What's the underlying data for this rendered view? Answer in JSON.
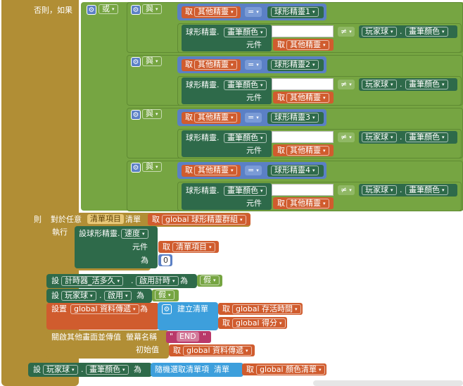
{
  "labels": {
    "else_if": "否則，如果",
    "then": "則",
    "do": "執行",
    "set": "設",
    "set_long": "設置",
    "to": "為",
    "element": "元件",
    "initial": "初始值",
    "ticks": "清單",
    "for_each": "對於任意",
    "list_word": "清單",
    "create_list": "建立清單",
    "random_item": "隨機選取清單項",
    "open_screen": "關啟其他畫面並傳值",
    "screen_name": "螢幕名稱",
    "set_ball": "設球形精靈",
    "component": "元件"
  },
  "logic": {
    "or": "或",
    "and": "與",
    "eq": "=",
    "neq": "≠",
    "dropdown_arrow": "▾"
  },
  "get": {
    "get": "取",
    "other_sprite": "其他精靈",
    "list_item": "清單項目",
    "global_sprites": "global 球形精靈群組",
    "global_time": "global 存活時間",
    "global_score": "global 得分",
    "global_pass": "global 資料傳遞",
    "global_colors": "global 顏色清單"
  },
  "sprites": [
    "球形精靈1",
    "球形精靈2",
    "球形精靈3",
    "球形精靈4"
  ],
  "props": {
    "sprite_paint": "球形精靈",
    "paint_color": "畫筆顏色",
    "player_ball": "玩家球",
    "speed": "速度",
    "timer": "計時器_活多久",
    "timer_enabled": "啟用計時",
    "enabled": "啟用",
    "false": "假"
  },
  "texts": {
    "end": "END",
    "zero": "0"
  },
  "colors": {
    "event": "#b18e35",
    "logic": "#76a542",
    "math": "#5b80c5",
    "variable": "#d05c2e",
    "component": "#2e6a4a",
    "text": "#b9396a",
    "list": "#3d9fdc"
  }
}
